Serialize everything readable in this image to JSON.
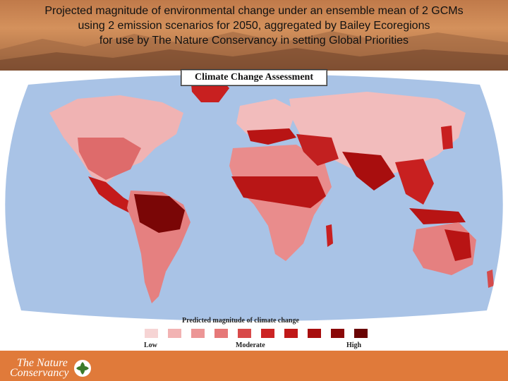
{
  "header": {
    "title_lines": [
      "Projected magnitude of environmental change under an ensemble mean of 2 GCMs",
      "using 2 emission scenarios for 2050, aggregated by Bailey Ecoregions",
      "for use by The Nature Conservancy in setting Global Priorities"
    ]
  },
  "map": {
    "banner": "Climate Change Assessment",
    "ocean_color": "#a9c3e6",
    "legend": {
      "title": "Predicted magnitude of climate change",
      "low_label": "Low",
      "moderate_label": "Moderate",
      "high_label": "High",
      "colors": [
        "#f6d4d4",
        "#f2b3b3",
        "#ec9696",
        "#e67878",
        "#d84a4a",
        "#cc2424",
        "#c01818",
        "#a80e0e",
        "#8a0808",
        "#6a0404"
      ]
    }
  },
  "footer": {
    "logo_line1": "The Nature",
    "logo_line2": "Conservancy",
    "logo_icon": "leaf-icon",
    "background": "#e07a3a"
  }
}
